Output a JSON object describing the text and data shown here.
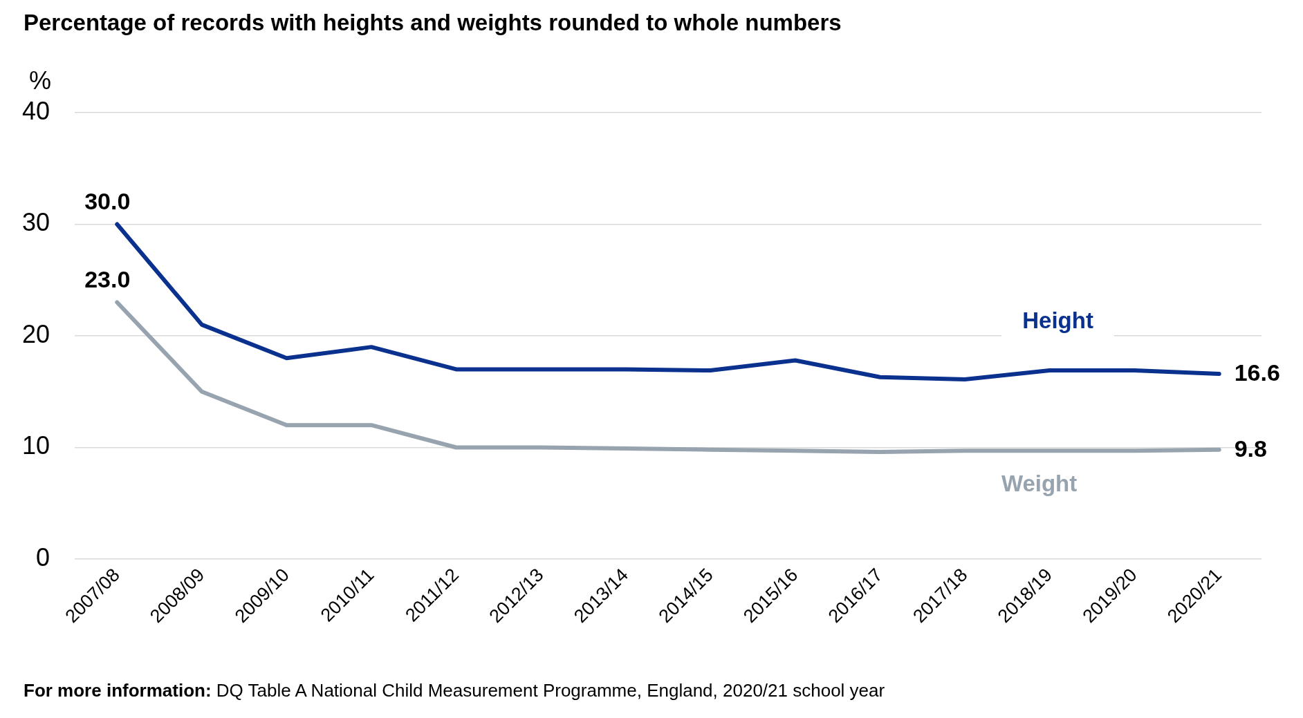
{
  "chart_data": {
    "type": "line",
    "title": "Percentage of records with heights and weights rounded to whole numbers",
    "ylabel": "%",
    "categories": [
      "2007/08",
      "2008/09",
      "2009/10",
      "2010/11",
      "2011/12",
      "2012/13",
      "2013/14",
      "2014/15",
      "2015/16",
      "2016/17",
      "2017/18",
      "2018/19",
      "2019/20",
      "2020/21"
    ],
    "series": [
      {
        "name": "Height",
        "color": "#0b318f",
        "values": [
          30.0,
          21,
          18,
          19,
          17,
          17,
          17,
          16.9,
          17.8,
          16.3,
          16.1,
          16.9,
          16.9,
          16.6
        ],
        "value_labels": [
          "30.0",
          null,
          null,
          null,
          null,
          null,
          null,
          null,
          null,
          null,
          null,
          null,
          null,
          "16.6"
        ]
      },
      {
        "name": "Weight",
        "color": "#97a3ae",
        "values": [
          23.0,
          15,
          12,
          12,
          10,
          10,
          9.9,
          9.8,
          9.7,
          9.6,
          9.7,
          9.7,
          9.7,
          9.8
        ],
        "value_labels": [
          "23.0",
          null,
          null,
          null,
          null,
          null,
          null,
          null,
          null,
          null,
          null,
          null,
          null,
          "9.8"
        ]
      }
    ],
    "ylim": [
      0,
      40
    ],
    "yticks": [
      0,
      10,
      20,
      30,
      40
    ],
    "grid": "y",
    "legend": false,
    "marker": "none",
    "line_style": "solid",
    "annotations": [
      "For more information: DQ Table A National Child Measurement Programme, England, 2020/21 school year"
    ]
  }
}
